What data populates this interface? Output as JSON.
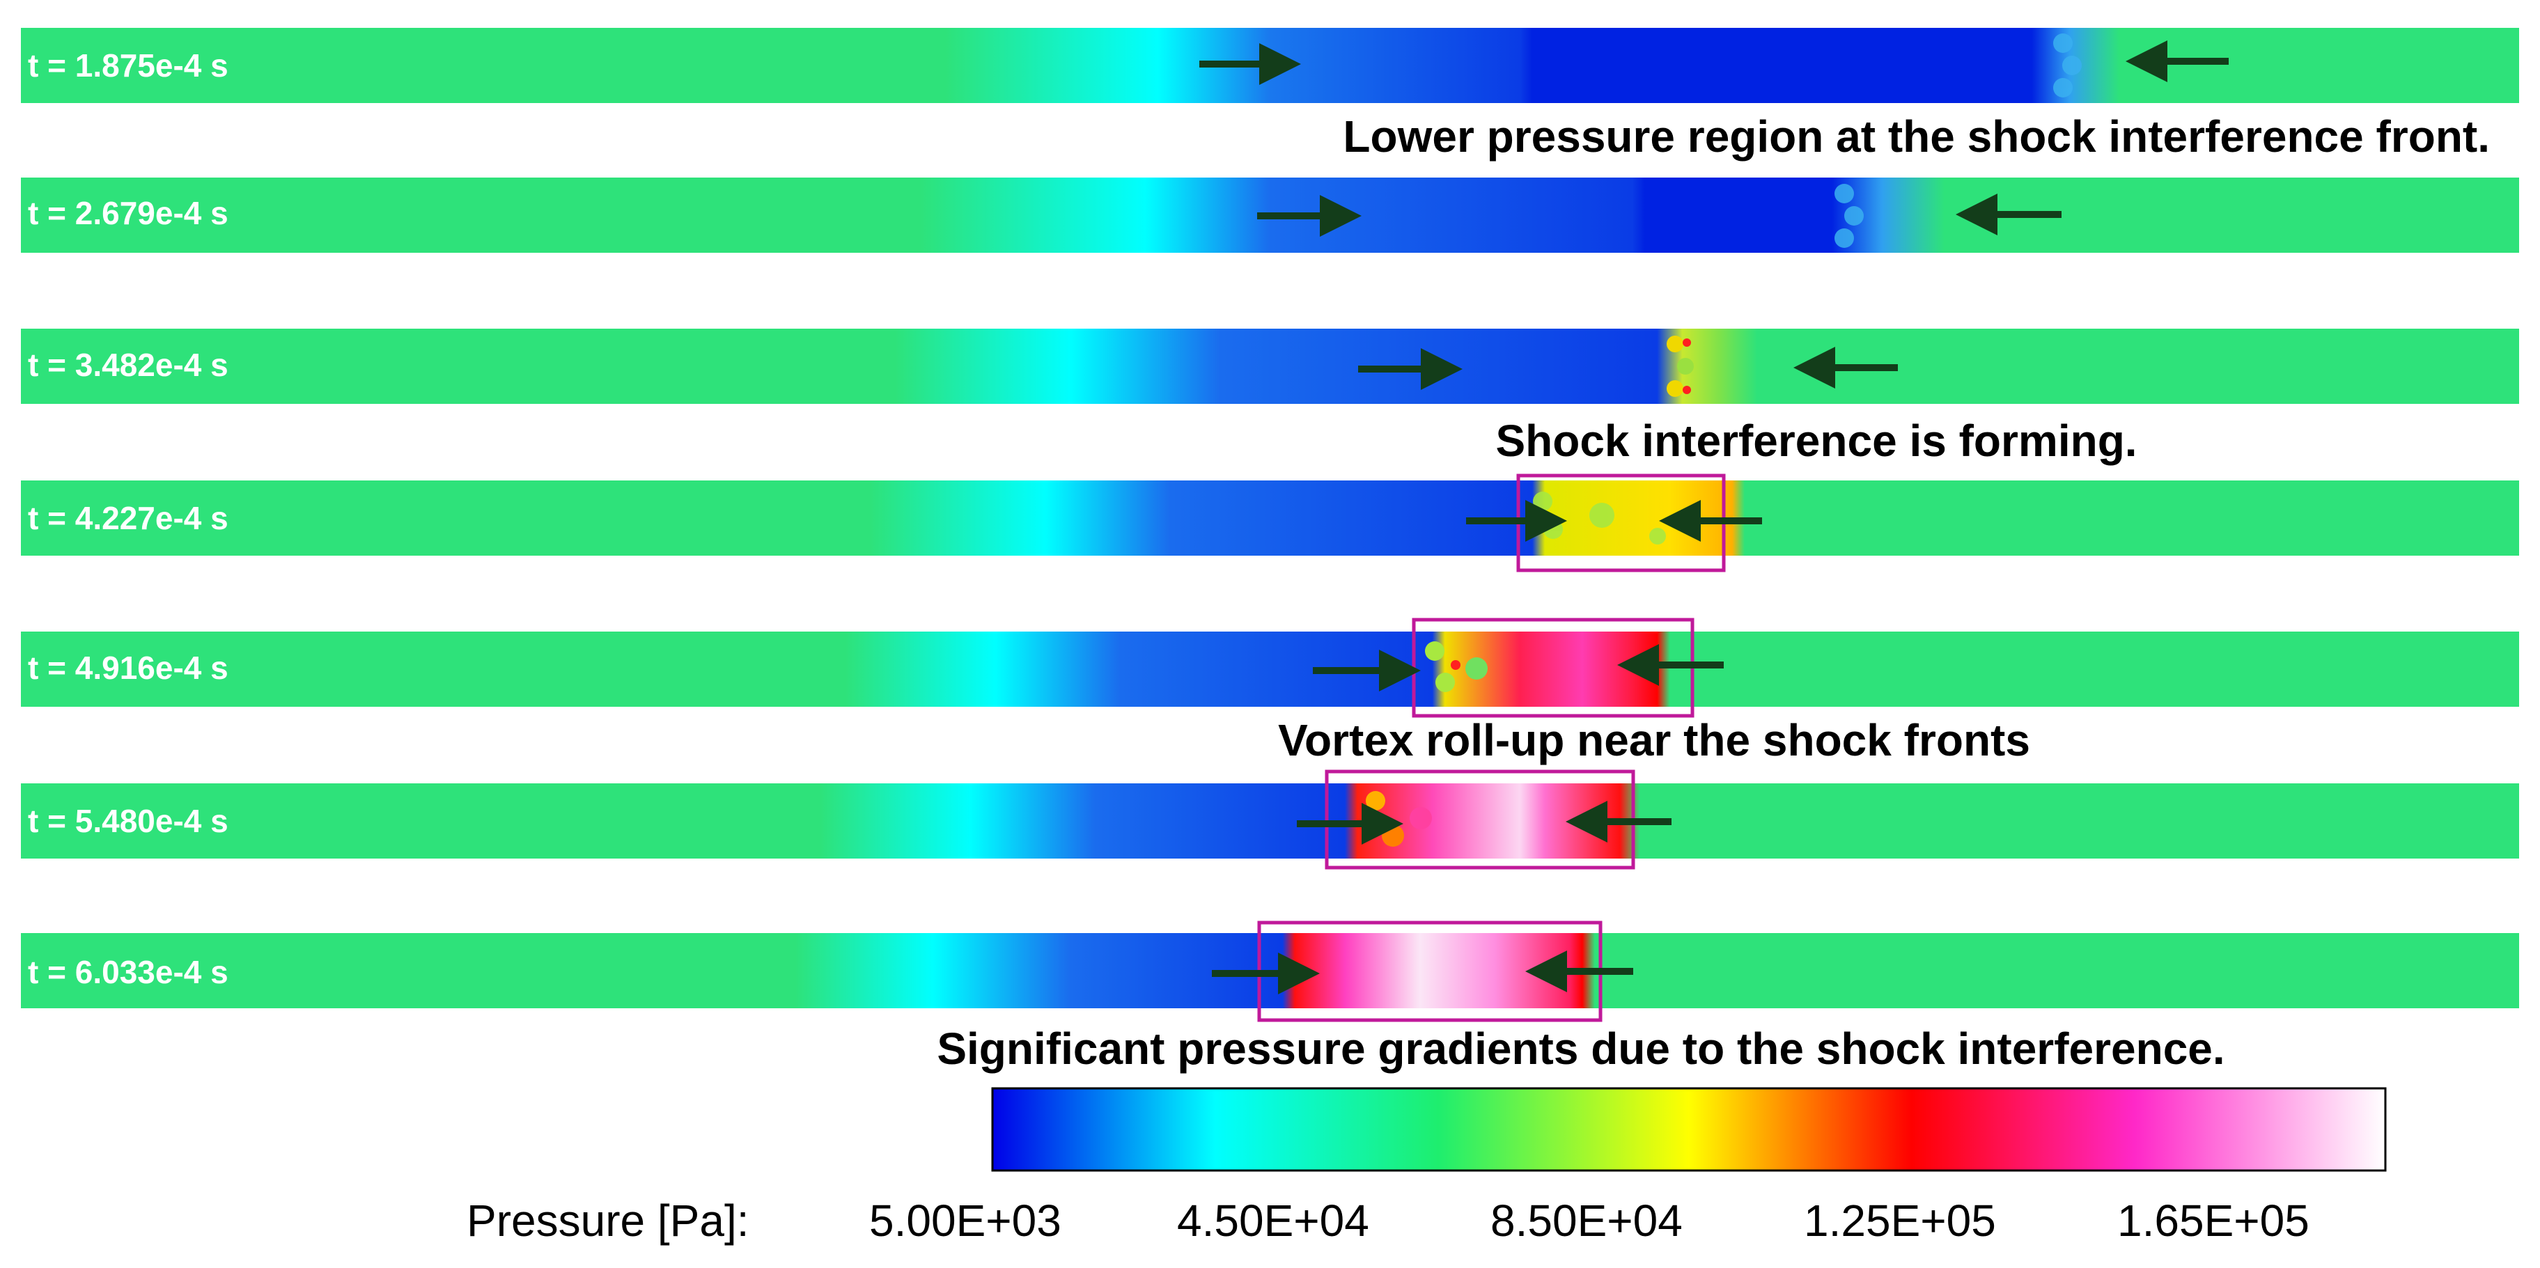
{
  "frames": [
    {
      "time_label": "t = 1.875e-4 s"
    },
    {
      "time_label": "t = 2.679e-4 s"
    },
    {
      "time_label": "t = 3.482e-4 s"
    },
    {
      "time_label": "t = 4.227e-4 s"
    },
    {
      "time_label": "t = 4.916e-4 s"
    },
    {
      "time_label": "t = 5.480e-4 s"
    },
    {
      "time_label": "t = 6.033e-4 s"
    }
  ],
  "annotations": {
    "a1": "Lower pressure region at the shock interference front.",
    "a2": "Shock interference is forming.",
    "a3": "Vortex roll-up near the shock fronts",
    "a4": "Significant pressure gradients due to the shock interference."
  },
  "colorbar": {
    "title": "Pressure [Pa]:",
    "ticks": [
      "5.00E+03",
      "4.50E+04",
      "8.50E+04",
      "1.25E+05",
      "1.65E+05"
    ],
    "colors": [
      "#0000e8",
      "#00ffff",
      "#1eee6e",
      "#ffff00",
      "#ff0000",
      "#ff28c8",
      "#ffffff"
    ]
  },
  "colors": {
    "ambient": "#2ee27a",
    "low_pressure": "#0a2ce6",
    "highlight_box": "#c0199a",
    "arrow": "#133d1a"
  }
}
